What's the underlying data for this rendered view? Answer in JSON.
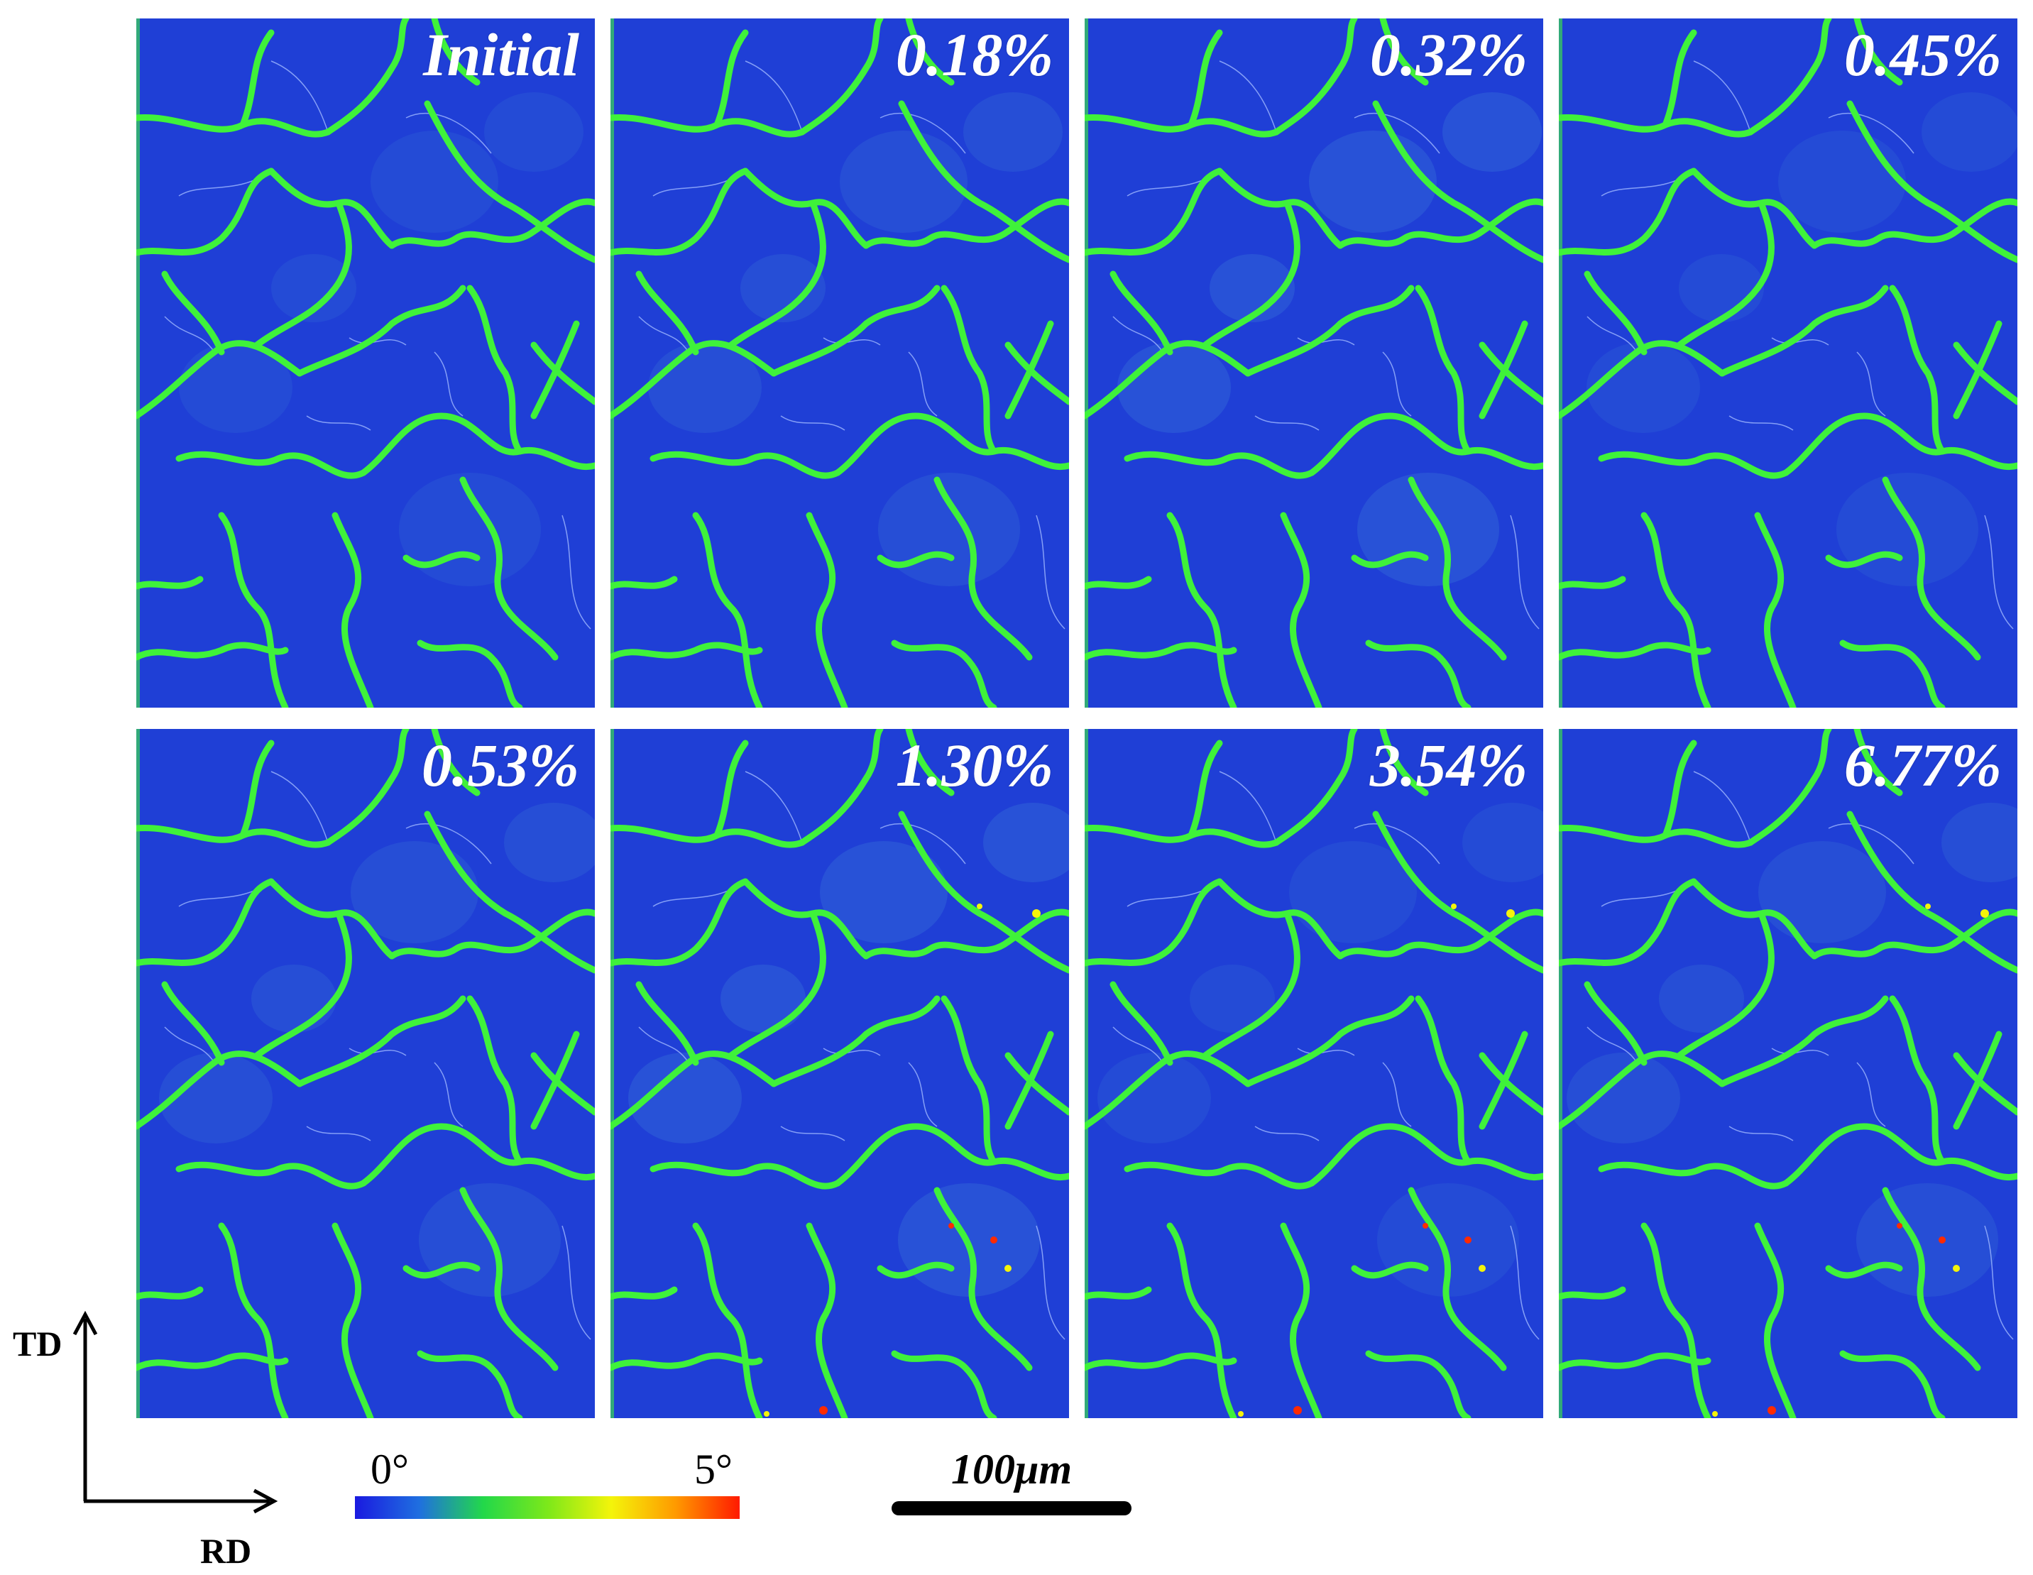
{
  "panels": [
    {
      "label": "Initial"
    },
    {
      "label": "0.18%"
    },
    {
      "label": "0.32%"
    },
    {
      "label": "0.45%"
    },
    {
      "label": "0.53%"
    },
    {
      "label": "1.30%"
    },
    {
      "label": "3.54%"
    },
    {
      "label": "6.77%"
    }
  ],
  "axes": {
    "vertical": "TD",
    "horizontal": "RD"
  },
  "colorbar": {
    "min_label": "0°",
    "max_label": "5°",
    "colors": [
      "#1a1ae0",
      "#1f6fe0",
      "#22d84a",
      "#7ce81a",
      "#f4f40a",
      "#ff9a00",
      "#ff1a00"
    ]
  },
  "scalebar": {
    "label": "100μm"
  },
  "colors": {
    "matrix": "#1f3fd6",
    "boundary": "#3ff23a",
    "thin_boundary": "#9fb8ff"
  }
}
